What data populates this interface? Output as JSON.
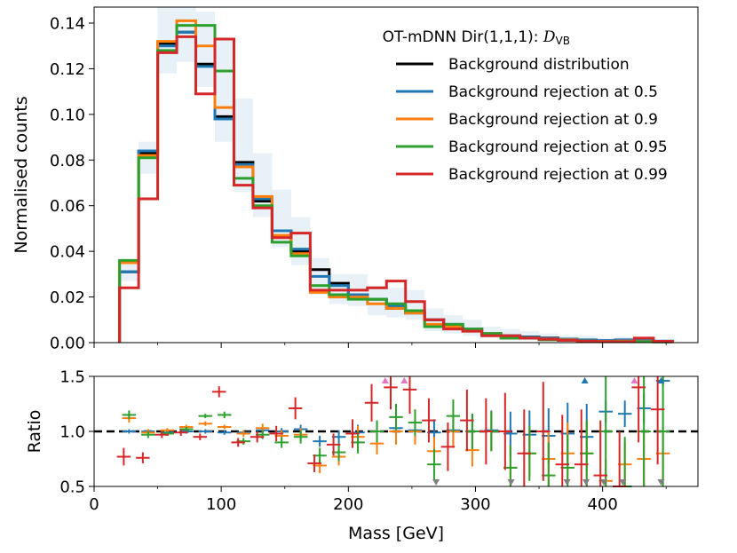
{
  "chart_data": {
    "type": "step-histogram-with-ratio",
    "xlabel": "Mass [GeV]",
    "xlim": [
      0,
      475
    ],
    "x_ticks": [
      0,
      100,
      200,
      300,
      400
    ],
    "x_tick_labels": [
      "0",
      "100",
      "200",
      "300",
      "400"
    ],
    "bin_edges": [
      20,
      35,
      50,
      65,
      80,
      95,
      110,
      125,
      140,
      155,
      170,
      185,
      200,
      215,
      230,
      245,
      260,
      275,
      290,
      305,
      320,
      335,
      350,
      365,
      380,
      395,
      410,
      425,
      440,
      455
    ],
    "top": {
      "ylabel": "Normalised counts",
      "ylim": [
        0,
        0.147
      ],
      "y_ticks": [
        0,
        0.02,
        0.04,
        0.06,
        0.08,
        0.1,
        0.12,
        0.14
      ],
      "y_tick_labels": [
        "0.00",
        "0.02",
        "0.04",
        "0.06",
        "0.08",
        "0.10",
        "0.12",
        "0.14"
      ],
      "legend_title": "OT-mDNN Dir(1,1,1): ",
      "legend_title_math": "D",
      "legend_title_sub": "VB",
      "legend_position": "upper right",
      "uncertainty_band": {
        "lower": [
          0.027,
          0.074,
          0.118,
          0.123,
          0.112,
          0.088,
          0.066,
          0.055,
          0.042,
          0.034,
          0.021,
          0.017,
          0.016,
          0.012,
          0.011,
          0.01,
          0.005,
          0.004,
          0.003,
          0.002,
          0.001,
          0.001,
          0.0005,
          0.0003,
          0.0001,
          0.0001,
          0.0001,
          0.0001,
          0
        ],
        "upper": [
          0.036,
          0.088,
          0.147,
          0.147,
          0.145,
          0.133,
          0.107,
          0.083,
          0.067,
          0.055,
          0.037,
          0.03,
          0.03,
          0.025,
          0.024,
          0.023,
          0.015,
          0.012,
          0.01,
          0.007,
          0.006,
          0.005,
          0.004,
          0.003,
          0.003,
          0.002,
          0.0025,
          0.002,
          0.001
        ]
      },
      "series": [
        {
          "name": "Background distribution",
          "color": "#000000",
          "values": [
            0.031,
            0.083,
            0.131,
            0.136,
            0.122,
            0.099,
            0.079,
            0.062,
            0.049,
            0.04,
            0.032,
            0.026,
            0.021,
            0.019,
            0.015,
            0.013,
            0.01,
            0.007,
            0.006,
            0.004,
            0.003,
            0.0025,
            0.002,
            0.0015,
            0.001,
            0.0008,
            0.001,
            0.0008,
            0.0005
          ]
        },
        {
          "name": "Background rejection at 0.5",
          "color": "#1f77b4",
          "values": [
            0.031,
            0.084,
            0.13,
            0.136,
            0.121,
            0.098,
            0.078,
            0.063,
            0.049,
            0.041,
            0.029,
            0.025,
            0.021,
            0.019,
            0.016,
            0.013,
            0.01,
            0.008,
            0.006,
            0.004,
            0.003,
            0.0024,
            0.0018,
            0.0015,
            0.0012,
            0.0009,
            0.0012,
            0.0009,
            0.0007
          ]
        },
        {
          "name": "Background rejection at 0.9",
          "color": "#ff7f0e",
          "values": [
            0.035,
            0.082,
            0.132,
            0.141,
            0.13,
            0.103,
            0.077,
            0.064,
            0.047,
            0.039,
            0.022,
            0.02,
            0.02,
            0.017,
            0.015,
            0.013,
            0.008,
            0.007,
            0.005,
            0.004,
            0.002,
            0.002,
            0.0015,
            0.0012,
            0.0008,
            0.0006,
            0.0007,
            0.0005,
            0.0004
          ]
        },
        {
          "name": "Background rejection at 0.95",
          "color": "#2ca02c",
          "values": [
            0.036,
            0.081,
            0.128,
            0.139,
            0.139,
            0.119,
            0.072,
            0.06,
            0.044,
            0.038,
            0.025,
            0.021,
            0.019,
            0.019,
            0.017,
            0.014,
            0.007,
            0.008,
            0.006,
            0.004,
            0.002,
            0.002,
            0.0012,
            0.001,
            0.0008,
            0.0005,
            0.0005,
            0.0004,
            0.0003
          ]
        },
        {
          "name": "Background rejection at 0.99",
          "color": "#d62728",
          "values": [
            0.024,
            0.063,
            0.127,
            0.134,
            0.109,
            0.133,
            0.069,
            0.059,
            0.046,
            0.048,
            0.023,
            0.023,
            0.023,
            0.024,
            0.027,
            0.018,
            0.01,
            0.006,
            0.005,
            0.003,
            0.003,
            0.002,
            0.0015,
            0.001,
            0.0007,
            0.0005,
            0.0004,
            0.002,
            0.0006
          ]
        }
      ]
    },
    "bottom": {
      "ylabel": "Ratio",
      "ylim": [
        0.5,
        1.5
      ],
      "y_ticks": [
        0.5,
        1.0,
        1.5
      ],
      "y_tick_labels": [
        "0.5",
        "1.0",
        "1.5"
      ],
      "reference_line": 1.0,
      "series": [
        {
          "name": "Background rejection at 0.5",
          "color": "#1f77b4",
          "offset": 0,
          "values": [
            1.0,
            1.0,
            0.99,
            1.0,
            1.0,
            0.99,
            0.99,
            1.01,
            1.0,
            1.02,
            0.91,
            0.95,
            0.99,
            1.0,
            1.03,
            1.01,
            0.99,
            1.01,
            1.0,
            1.01,
            0.98,
            0.97,
            0.96,
            0.98,
            0.95,
            1.18,
            1.16,
            1.21,
            1.46
          ],
          "err": [
            0.02,
            0.02,
            0.02,
            0.02,
            0.02,
            0.02,
            0.02,
            0.03,
            0.03,
            0.04,
            0.05,
            0.06,
            0.07,
            0.08,
            0.09,
            0.1,
            0.12,
            0.14,
            0.16,
            0.18,
            0.2,
            0.22,
            0.25,
            0.28,
            0.3,
            0.1,
            0.12,
            0.14,
            0.05
          ]
        },
        {
          "name": "Background rejection at 0.9",
          "color": "#ff7f0e",
          "offset": 0,
          "values": [
            1.12,
            0.99,
            1.01,
            1.04,
            1.07,
            1.04,
            0.98,
            1.03,
            0.96,
            0.97,
            0.69,
            0.77,
            0.95,
            0.89,
            1.0,
            1.0,
            0.82,
            1.0,
            0.83,
            1.0,
            0.67,
            0.8,
            0.75,
            0.8,
            0.8,
            0.55,
            0.7,
            0.75,
            0.8
          ],
          "err": [
            0.04,
            0.03,
            0.02,
            0.02,
            0.02,
            0.02,
            0.03,
            0.04,
            0.05,
            0.06,
            0.07,
            0.08,
            0.1,
            0.1,
            0.12,
            0.12,
            0.13,
            0.15,
            0.15,
            0.18,
            0.2,
            0.22,
            0.25,
            0.28,
            0.3,
            0.2,
            0.2,
            0.25,
            0.25
          ]
        },
        {
          "name": "Background rejection at 0.95",
          "color": "#2ca02c",
          "offset": 0,
          "values": [
            1.15,
            0.97,
            0.98,
            1.02,
            1.14,
            1.15,
            0.91,
            0.97,
            0.9,
            0.95,
            0.78,
            0.81,
            0.9,
            1.0,
            1.13,
            1.08,
            0.7,
            1.14,
            1.0,
            1.0,
            0.67,
            0.8,
            0.6,
            0.67,
            0.8,
            1.0,
            0.5,
            1.0,
            1.0
          ],
          "err": [
            0.04,
            0.03,
            0.02,
            0.02,
            0.02,
            0.03,
            0.03,
            0.04,
            0.05,
            0.06,
            0.07,
            0.08,
            0.1,
            0.1,
            0.12,
            0.12,
            0.14,
            0.15,
            0.16,
            0.18,
            0.2,
            0.25,
            0.3,
            0.3,
            0.3,
            0.5,
            0.45,
            0.5,
            0.5
          ]
        },
        {
          "name": "Background rejection at 0.99",
          "color": "#d62728",
          "offset": -6,
          "values": [
            0.77,
            0.76,
            0.97,
            0.99,
            0.95,
            1.36,
            0.9,
            0.95,
            0.98,
            1.21,
            0.71,
            0.88,
            0.98,
            1.26,
            1.4,
            1.38,
            1.1,
            0.86,
            1.1,
            1.0,
            1.0,
            0.8,
            1.0,
            0.7,
            0.7,
            0.6,
            0.5,
            1.4,
            1.2
          ],
          "err": [
            0.08,
            0.05,
            0.03,
            0.03,
            0.03,
            0.05,
            0.04,
            0.05,
            0.07,
            0.1,
            0.08,
            0.1,
            0.13,
            0.17,
            0.2,
            0.22,
            0.2,
            0.22,
            0.28,
            0.3,
            0.35,
            0.4,
            0.45,
            0.45,
            0.5,
            0.5,
            0.5,
            0.5,
            0.5
          ]
        }
      ],
      "markers": [
        {
          "x": 229,
          "dir": "up",
          "color": "#e377c2"
        },
        {
          "x": 244,
          "dir": "up",
          "color": "#e377c2"
        },
        {
          "x": 425,
          "dir": "up",
          "color": "#e377c2"
        },
        {
          "x": 386,
          "dir": "up",
          "color": "#1f77b4"
        },
        {
          "x": 446,
          "dir": "up",
          "color": "#1f77b4"
        },
        {
          "x": 269,
          "dir": "down",
          "color": "#7f7f7f"
        },
        {
          "x": 328,
          "dir": "down",
          "color": "#7f7f7f"
        },
        {
          "x": 372,
          "dir": "down",
          "color": "#7f7f7f"
        },
        {
          "x": 387,
          "dir": "down",
          "color": "#7f7f7f"
        },
        {
          "x": 401,
          "dir": "down",
          "color": "#7f7f7f"
        },
        {
          "x": 416,
          "dir": "down",
          "color": "#7f7f7f"
        },
        {
          "x": 446,
          "dir": "down",
          "color": "#7f7f7f"
        }
      ]
    }
  }
}
